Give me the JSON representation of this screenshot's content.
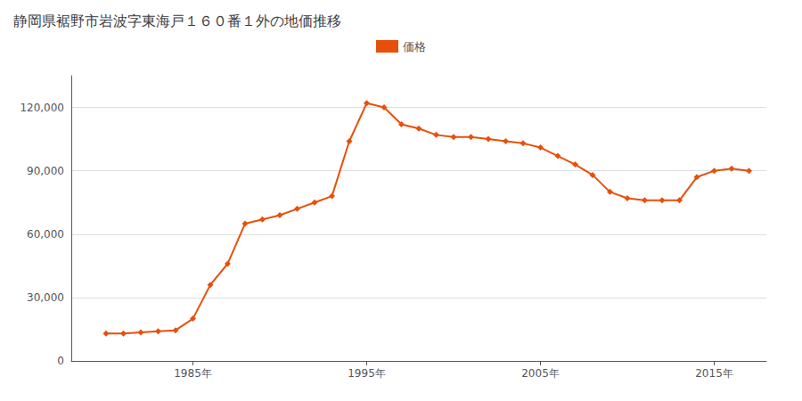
{
  "chart_data": {
    "type": "line",
    "title": "静岡県裾野市岩波字東海戸１６０番１外の地価推移",
    "x": [
      1980,
      1981,
      1982,
      1983,
      1984,
      1985,
      1986,
      1987,
      1988,
      1989,
      1990,
      1991,
      1992,
      1993,
      1994,
      1995,
      1996,
      1997,
      1998,
      1999,
      2000,
      2001,
      2002,
      2003,
      2004,
      2005,
      2006,
      2007,
      2008,
      2009,
      2010,
      2011,
      2012,
      2013,
      2014,
      2015,
      2016,
      2017
    ],
    "series": [
      {
        "name": "価格",
        "color": "#e8500a",
        "marker": "diamond",
        "values": [
          13000,
          13000,
          13500,
          14000,
          14500,
          20000,
          36000,
          46000,
          65000,
          67000,
          69000,
          72000,
          75000,
          78000,
          104000,
          122000,
          120000,
          112000,
          110000,
          107000,
          106000,
          106000,
          105000,
          104000,
          103000,
          101000,
          97000,
          93000,
          88000,
          80000,
          77000,
          76000,
          76000,
          76000,
          87000,
          90000,
          91000,
          90000
        ]
      }
    ],
    "xlim": [
      1978,
      2018
    ],
    "xticks": [
      {
        "value": 1985,
        "label": "1985年"
      },
      {
        "value": 1995,
        "label": "1995年"
      },
      {
        "value": 2005,
        "label": "2005年"
      },
      {
        "value": 2015,
        "label": "2015年"
      }
    ],
    "ylim": [
      0,
      135000
    ],
    "yticks": [
      0,
      {
        "value": 30000,
        "label": "30,000"
      },
      {
        "value": 60000,
        "label": "60,000"
      },
      {
        "value": 90000,
        "label": "90,000"
      },
      {
        "value": 120000,
        "label": "120,000"
      }
    ],
    "grid": true,
    "legend": "top"
  }
}
